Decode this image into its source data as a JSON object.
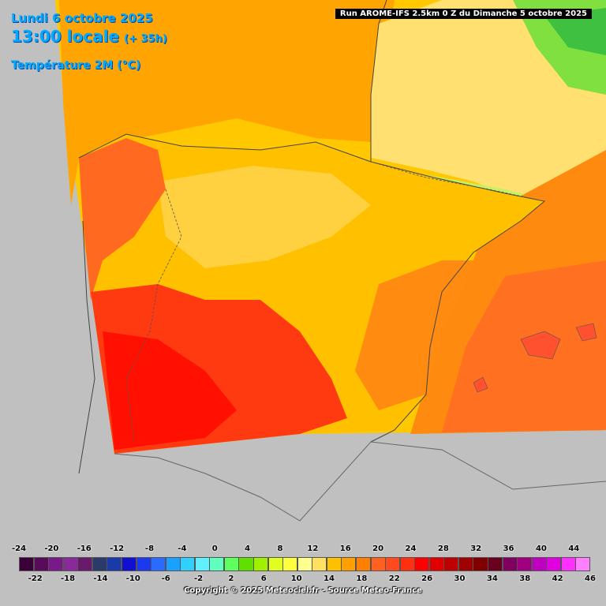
{
  "header": {
    "date": "Lundi 6 octobre 2025",
    "hour": "13:00 locale",
    "lead": "(+ 35h)",
    "parameter": "Température 2M (°C)"
  },
  "run_label": "Run AROME-IFS 2.5km 0 Z du Dimanche 5 octobre 2025",
  "copyright": "Copyright © 2025 Meteociel.fr - Source Meteo-France",
  "legend": {
    "top_ticks": [
      "-24",
      "-20",
      "-16",
      "-12",
      "-8",
      "-4",
      "0",
      "4",
      "8",
      "12",
      "16",
      "20",
      "24",
      "28",
      "32",
      "36",
      "40",
      "44"
    ],
    "bottom_ticks": [
      "-22",
      "-18",
      "-14",
      "-10",
      "-6",
      "-2",
      "2",
      "6",
      "10",
      "14",
      "18",
      "22",
      "26",
      "30",
      "34",
      "38",
      "42",
      "46"
    ],
    "colors": [
      "#3a003a",
      "#5a0a5a",
      "#7a1a8a",
      "#8a2a9a",
      "#6a1a6a",
      "#2a3a6a",
      "#1a3aaa",
      "#1010d0",
      "#1a3af0",
      "#2a6aff",
      "#1aa0ff",
      "#30d0ff",
      "#60f0ff",
      "#60ffc0",
      "#60ff60",
      "#60e000",
      "#a0f000",
      "#e0ff20",
      "#ffff40",
      "#ffff90",
      "#ffe060",
      "#ffc000",
      "#ffa000",
      "#ff8000",
      "#ff6020",
      "#ff4a20",
      "#ff3010",
      "#ff0000",
      "#e00000",
      "#c00000",
      "#a00000",
      "#800000",
      "#6a0020",
      "#800060",
      "#a00080",
      "#c000c0",
      "#e000e0",
      "#ff30ff",
      "#ff80ff"
    ]
  }
}
